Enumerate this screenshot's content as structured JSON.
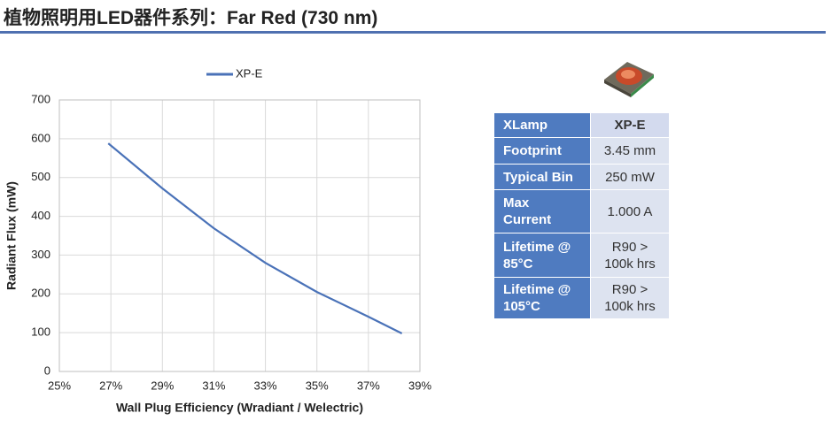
{
  "header": {
    "title": "植物照明用LED器件系列：Far Red (730 nm)"
  },
  "chart_data": {
    "type": "line",
    "x_label": "Wall Plug Efficiency (Wradiant / Welectric)",
    "y_label": "Radiant Flux (mW)",
    "x": [
      26.9,
      29,
      31,
      33,
      35,
      37,
      38.3
    ],
    "series": [
      {
        "name": "XP-E",
        "color": "#4a72b8",
        "values": [
          588,
          472,
          369,
          280,
          205,
          141,
          98
        ]
      }
    ],
    "xlim": [
      25,
      39
    ],
    "xticks": [
      {
        "value": 25,
        "label": "25%"
      },
      {
        "value": 27,
        "label": "27%"
      },
      {
        "value": 29,
        "label": "29%"
      },
      {
        "value": 31,
        "label": "31%"
      },
      {
        "value": 33,
        "label": "33%"
      },
      {
        "value": 35,
        "label": "35%"
      },
      {
        "value": 37,
        "label": "37%"
      },
      {
        "value": 39,
        "label": "39%"
      }
    ],
    "ylim": [
      0,
      700
    ],
    "yticks": [
      0,
      100,
      200,
      300,
      400,
      500,
      600,
      700
    ],
    "grid": true,
    "legend": "top"
  },
  "table": {
    "rows": [
      [
        "XLamp",
        "XP-E"
      ],
      [
        "Footprint",
        "3.45 mm"
      ],
      [
        "Typical Bin",
        "250 mW"
      ],
      [
        "Max\nCurrent",
        "1.000 A"
      ],
      [
        "Lifetime @\n85°C",
        "R90 >\n100k hrs"
      ],
      [
        "Lifetime @\n105°C",
        "R90 >\n100k hrs"
      ]
    ]
  }
}
